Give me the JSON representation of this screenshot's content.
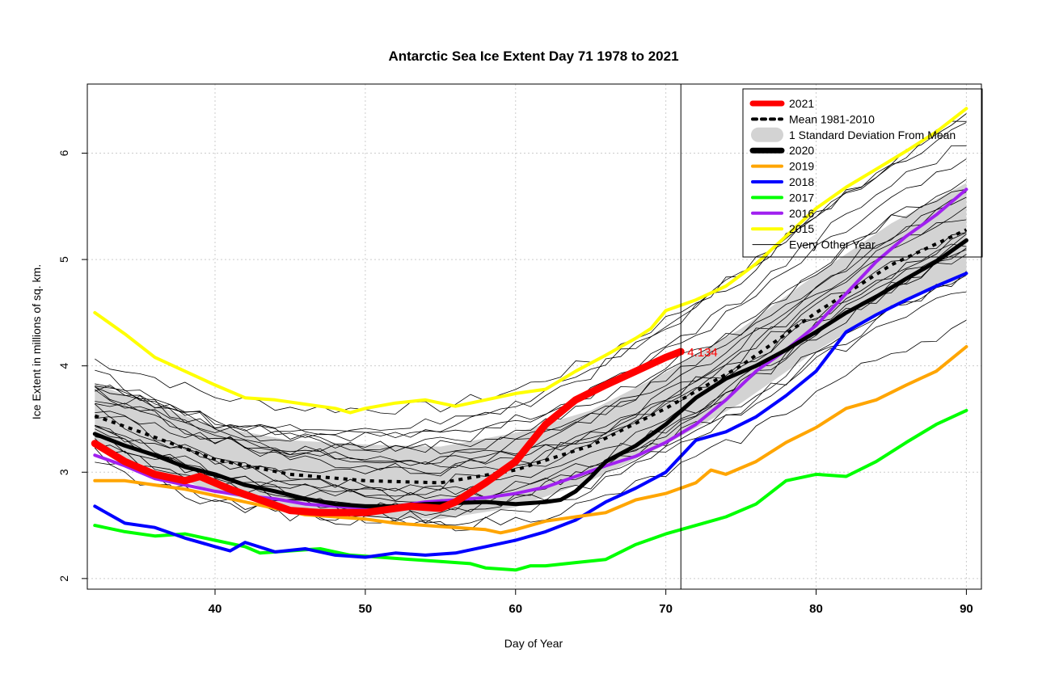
{
  "chart_data": {
    "type": "line",
    "title": "Antarctic Sea Ice Extent Day 71 1978 to 2021",
    "xlabel": "Day of Year",
    "ylabel": "Ice Extent in millions of sq. km.",
    "xlim": [
      31.5,
      91
    ],
    "ylim": [
      1.9,
      6.65
    ],
    "x_ticks": [
      40,
      50,
      60,
      70,
      80,
      90
    ],
    "y_ticks": [
      2,
      3,
      4,
      5,
      6
    ],
    "grid": true,
    "legend_position": "top-right",
    "vline_day": 71,
    "current_value_label": "4.134",
    "current_value": {
      "x": 71,
      "y": 4.134
    },
    "legend": [
      {
        "label": "2021",
        "color": "#ff0000",
        "style": "thick"
      },
      {
        "label": "Mean 1981-2010",
        "color": "#000000",
        "style": "dotted"
      },
      {
        "label": "1 Standard Deviation From Mean",
        "color": "#d3d3d3",
        "style": "band"
      },
      {
        "label": "2020",
        "color": "#000000",
        "style": "thick"
      },
      {
        "label": "2019",
        "color": "#ffa500",
        "style": "medium"
      },
      {
        "label": "2018",
        "color": "#0000ff",
        "style": "medium"
      },
      {
        "label": "2017",
        "color": "#00ff00",
        "style": "medium"
      },
      {
        "label": "2016",
        "color": "#a020f0",
        "style": "medium"
      },
      {
        "label": "2015",
        "color": "#ffff00",
        "style": "medium"
      },
      {
        "label": "Every Other Year",
        "color": "#000000",
        "style": "thin"
      }
    ],
    "mean": {
      "name": "Mean 1981-2010",
      "x": [
        32,
        35,
        40,
        45,
        50,
        55,
        60,
        65,
        70,
        75,
        80,
        85,
        90
      ],
      "y": [
        3.53,
        3.38,
        3.12,
        2.98,
        2.92,
        2.9,
        3.02,
        3.25,
        3.6,
        4.0,
        4.5,
        4.95,
        5.28
      ]
    },
    "std_band": {
      "x": [
        32,
        35,
        40,
        45,
        50,
        55,
        60,
        65,
        70,
        75,
        80,
        85,
        90
      ],
      "upper": [
        3.83,
        3.68,
        3.43,
        3.3,
        3.26,
        3.24,
        3.37,
        3.58,
        3.94,
        4.35,
        4.86,
        5.34,
        5.72
      ],
      "lower": [
        3.23,
        3.08,
        2.81,
        2.66,
        2.58,
        2.56,
        2.67,
        2.92,
        3.26,
        3.65,
        4.14,
        4.56,
        4.84
      ]
    },
    "series": [
      {
        "name": "2021",
        "color": "#ff0000",
        "x": [
          32,
          34,
          36,
          38,
          39,
          41,
          43,
          45,
          47,
          50,
          53,
          55,
          56,
          58,
          60,
          62,
          64,
          66,
          68,
          70,
          71
        ],
        "y": [
          3.27,
          3.1,
          2.98,
          2.92,
          2.96,
          2.84,
          2.74,
          2.64,
          2.62,
          2.62,
          2.68,
          2.66,
          2.72,
          2.9,
          3.1,
          3.45,
          3.68,
          3.82,
          3.95,
          4.08,
          4.134
        ]
      },
      {
        "name": "2020",
        "color": "#000000",
        "x": [
          32,
          34,
          36,
          38,
          40,
          42,
          44,
          46,
          48,
          50,
          52,
          54,
          56,
          58,
          60,
          62,
          63,
          64,
          65,
          66,
          68,
          70,
          72,
          74,
          76,
          78,
          80,
          82,
          84,
          86,
          88,
          90
        ],
        "y": [
          3.36,
          3.25,
          3.16,
          3.05,
          2.98,
          2.88,
          2.82,
          2.75,
          2.7,
          2.68,
          2.68,
          2.7,
          2.71,
          2.72,
          2.7,
          2.72,
          2.74,
          2.82,
          2.95,
          3.1,
          3.25,
          3.45,
          3.7,
          3.88,
          4.0,
          4.15,
          4.32,
          4.5,
          4.65,
          4.82,
          4.98,
          5.18
        ]
      },
      {
        "name": "2019",
        "color": "#ffa500",
        "x": [
          32,
          34,
          36,
          38,
          40,
          42,
          44,
          46,
          48,
          50,
          52,
          54,
          56,
          58,
          59,
          60,
          62,
          64,
          66,
          68,
          70,
          72,
          73,
          74,
          76,
          78,
          80,
          82,
          84,
          86,
          88,
          90
        ],
        "y": [
          2.92,
          2.92,
          2.88,
          2.84,
          2.78,
          2.72,
          2.66,
          2.6,
          2.58,
          2.56,
          2.52,
          2.5,
          2.48,
          2.46,
          2.43,
          2.46,
          2.54,
          2.58,
          2.62,
          2.74,
          2.8,
          2.9,
          3.02,
          2.98,
          3.1,
          3.28,
          3.42,
          3.6,
          3.68,
          3.82,
          3.95,
          4.18
        ]
      },
      {
        "name": "2018",
        "color": "#0000ff",
        "x": [
          32,
          34,
          36,
          38,
          40,
          41,
          42,
          44,
          46,
          48,
          50,
          52,
          54,
          56,
          58,
          60,
          62,
          64,
          66,
          68,
          70,
          72,
          74,
          76,
          78,
          80,
          82,
          84,
          86,
          88,
          90
        ],
        "y": [
          2.68,
          2.52,
          2.48,
          2.38,
          2.3,
          2.26,
          2.34,
          2.25,
          2.28,
          2.22,
          2.2,
          2.24,
          2.22,
          2.24,
          2.3,
          2.36,
          2.44,
          2.55,
          2.72,
          2.85,
          3.0,
          3.3,
          3.38,
          3.52,
          3.72,
          3.95,
          4.32,
          4.48,
          4.62,
          4.75,
          4.87
        ]
      },
      {
        "name": "2017",
        "color": "#00ff00",
        "x": [
          32,
          34,
          36,
          38,
          40,
          42,
          43,
          45,
          47,
          49,
          51,
          53,
          55,
          57,
          58,
          60,
          61,
          62,
          64,
          66,
          68,
          70,
          72,
          74,
          76,
          78,
          80,
          82,
          84,
          86,
          88,
          90
        ],
        "y": [
          2.5,
          2.44,
          2.4,
          2.42,
          2.36,
          2.3,
          2.24,
          2.26,
          2.28,
          2.22,
          2.2,
          2.18,
          2.16,
          2.14,
          2.1,
          2.08,
          2.12,
          2.12,
          2.15,
          2.18,
          2.32,
          2.42,
          2.5,
          2.58,
          2.7,
          2.92,
          2.98,
          2.96,
          3.1,
          3.28,
          3.45,
          3.58
        ]
      },
      {
        "name": "2016",
        "color": "#a020f0",
        "x": [
          32,
          34,
          36,
          38,
          40,
          42,
          44,
          46,
          48,
          50,
          52,
          54,
          56,
          58,
          60,
          62,
          64,
          66,
          68,
          70,
          72,
          74,
          76,
          78,
          80,
          82,
          84,
          86,
          88,
          90
        ],
        "y": [
          3.16,
          3.06,
          2.94,
          2.88,
          2.82,
          2.78,
          2.75,
          2.7,
          2.68,
          2.66,
          2.68,
          2.72,
          2.74,
          2.76,
          2.8,
          2.86,
          2.96,
          3.06,
          3.15,
          3.28,
          3.45,
          3.68,
          3.95,
          4.15,
          4.38,
          4.68,
          4.98,
          5.22,
          5.42,
          5.66
        ]
      },
      {
        "name": "2015",
        "color": "#ffff00",
        "x": [
          32,
          34,
          36,
          38,
          40,
          42,
          44,
          46,
          48,
          49,
          50,
          52,
          54,
          56,
          58,
          60,
          62,
          64,
          66,
          68,
          69,
          70,
          72,
          74,
          76,
          78,
          80,
          82,
          84,
          86,
          88,
          90
        ],
        "y": [
          4.5,
          4.3,
          4.08,
          3.95,
          3.82,
          3.7,
          3.68,
          3.64,
          3.6,
          3.56,
          3.6,
          3.65,
          3.68,
          3.62,
          3.68,
          3.74,
          3.78,
          3.95,
          4.1,
          4.26,
          4.35,
          4.52,
          4.62,
          4.75,
          4.96,
          5.22,
          5.48,
          5.68,
          5.85,
          6.02,
          6.2,
          6.42
        ]
      }
    ]
  }
}
